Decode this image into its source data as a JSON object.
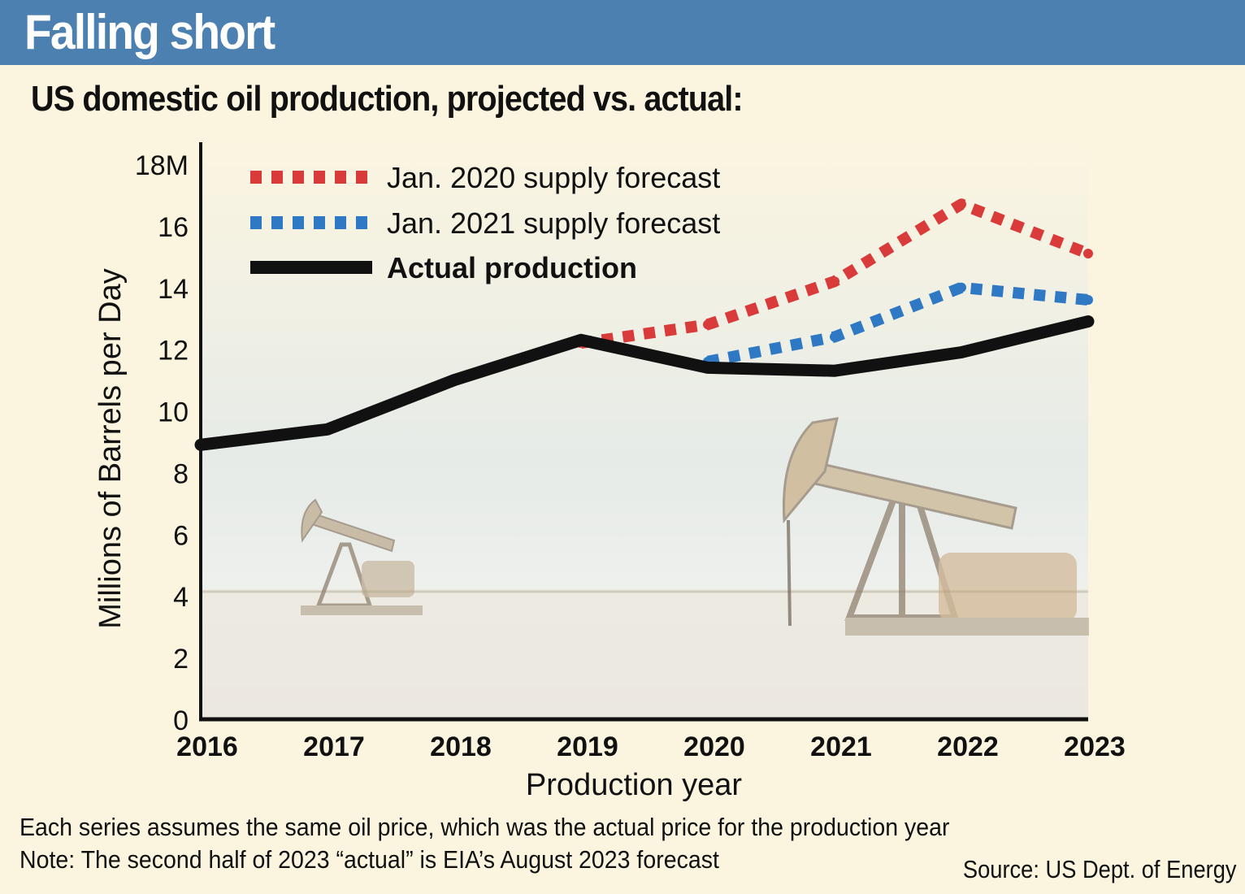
{
  "header": {
    "title": "Falling short",
    "subtitle": "US domestic oil production, projected vs. actual:"
  },
  "footer": {
    "note_1": "Each series assumes the same oil price, which was the actual price for the production year",
    "note_2": "Note: The second half of 2023 “actual” is EIA’s August 2023 forecast",
    "source": "Source: US Dept. of Energy"
  },
  "colors": {
    "banner": "#4c80b0",
    "background": "#fbf5e0",
    "forecast_2020": "#d93a3a",
    "forecast_2021": "#2f78c4",
    "actual": "#111111"
  },
  "chart_data": {
    "type": "line",
    "xlabel": "Production year",
    "ylabel": "Millions of Barrels per Day",
    "ylim": [
      0,
      18
    ],
    "xlim": [
      2016,
      2023
    ],
    "y_ticks": [
      "0",
      "2",
      "4",
      "6",
      "8",
      "10",
      "12",
      "14",
      "16",
      "18M"
    ],
    "x_ticks": [
      "2016",
      "2017",
      "2018",
      "2019",
      "2020",
      "2021",
      "2022",
      "2023"
    ],
    "legend_position": "top-left",
    "grid": false,
    "series": [
      {
        "name": "Jan. 2020 supply forecast",
        "style": "dotted",
        "color": "#d93a3a",
        "x": [
          2019,
          2020,
          2021,
          2022,
          2023
        ],
        "values": [
          12.2,
          12.8,
          14.2,
          16.7,
          15.1
        ]
      },
      {
        "name": "Jan. 2021 supply forecast",
        "style": "dotted",
        "color": "#2f78c4",
        "x": [
          2020,
          2021,
          2022,
          2023
        ],
        "values": [
          11.6,
          12.4,
          14.0,
          13.6
        ]
      },
      {
        "name": "Actual production",
        "style": "solid",
        "color": "#111111",
        "x": [
          2016,
          2017,
          2018,
          2019,
          2020,
          2021,
          2022,
          2023
        ],
        "values": [
          8.9,
          9.4,
          11.0,
          12.3,
          11.4,
          11.3,
          11.9,
          12.9
        ]
      }
    ]
  }
}
